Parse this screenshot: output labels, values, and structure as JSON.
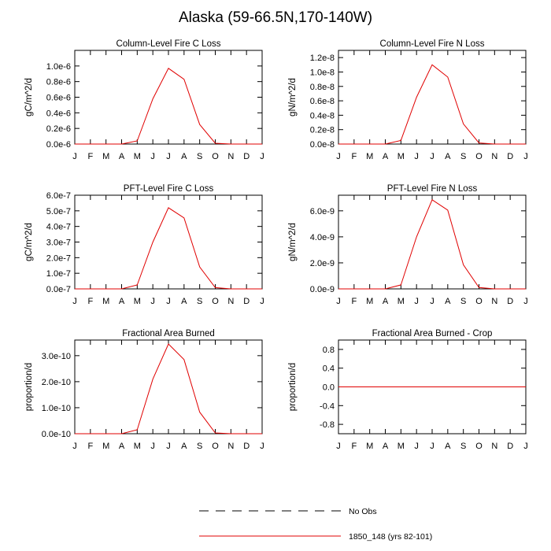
{
  "figure": {
    "title": "Alaska (59-66.5N,170-140W)"
  },
  "colors": {
    "model_line": "#e00000",
    "obs_line": "#000000",
    "axis": "#000000",
    "background": "#ffffff"
  },
  "legend": {
    "entries": [
      {
        "label": "No Obs",
        "style": "dashed",
        "color": "#000000"
      },
      {
        "label": "1850_148 (yrs 82-101)",
        "style": "solid",
        "color": "#e00000"
      }
    ]
  },
  "chart_data": [
    {
      "type": "line",
      "title": "Column-Level Fire C Loss",
      "ylabel": "gC/m^2/d",
      "xlabel": "",
      "categories": [
        "J",
        "F",
        "M",
        "A",
        "M",
        "J",
        "J",
        "A",
        "S",
        "O",
        "N",
        "D",
        "J"
      ],
      "ylim": [
        0,
        1.2e-06
      ],
      "yticks": [
        0,
        2e-07,
        4e-07,
        6e-07,
        8e-07,
        1e-06
      ],
      "ytick_labels": [
        "0.0e-6",
        "0.2e-6",
        "0.4e-6",
        "0.6e-6",
        "0.8e-6",
        "1.0e-6"
      ],
      "series": [
        {
          "name": "1850_148 (yrs 82-101)",
          "values": [
            0,
            0,
            0,
            0,
            4e-08,
            5.8e-07,
            9.7e-07,
            8.3e-07,
            2.5e-07,
            1e-08,
            0,
            0,
            0
          ]
        }
      ]
    },
    {
      "type": "line",
      "title": "Column-Level Fire N Loss",
      "ylabel": "gN/m^2/d",
      "xlabel": "",
      "categories": [
        "J",
        "F",
        "M",
        "A",
        "M",
        "J",
        "J",
        "A",
        "S",
        "O",
        "N",
        "D",
        "J"
      ],
      "ylim": [
        0,
        1.3e-08
      ],
      "yticks": [
        0,
        2e-09,
        4e-09,
        6e-09,
        8e-09,
        1e-08,
        1.2e-08
      ],
      "ytick_labels": [
        "0.0e-8",
        "0.2e-8",
        "0.4e-8",
        "0.6e-8",
        "0.8e-8",
        "1.0e-8",
        "1.2e-8"
      ],
      "series": [
        {
          "name": "1850_148 (yrs 82-101)",
          "values": [
            0,
            0,
            0,
            0,
            5e-10,
            6.5e-09,
            1.1e-08,
            9.3e-09,
            2.8e-09,
            1.5e-10,
            0,
            0,
            0
          ]
        }
      ]
    },
    {
      "type": "line",
      "title": "PFT-Level Fire C Loss",
      "ylabel": "gC/m^2/d",
      "xlabel": "",
      "categories": [
        "J",
        "F",
        "M",
        "A",
        "M",
        "J",
        "J",
        "A",
        "S",
        "O",
        "N",
        "D",
        "J"
      ],
      "ylim": [
        0,
        6e-07
      ],
      "yticks": [
        0,
        1e-07,
        2e-07,
        3e-07,
        4e-07,
        5e-07,
        6e-07
      ],
      "ytick_labels": [
        "0.0e-7",
        "1.0e-7",
        "2.0e-7",
        "3.0e-7",
        "4.0e-7",
        "5.0e-7",
        "6.0e-7"
      ],
      "series": [
        {
          "name": "1850_148 (yrs 82-101)",
          "values": [
            0,
            0,
            0,
            0,
            2.5e-08,
            3e-07,
            5.2e-07,
            4.55e-07,
            1.4e-07,
            8e-09,
            0,
            0,
            0
          ]
        }
      ]
    },
    {
      "type": "line",
      "title": "PFT-Level Fire N Loss",
      "ylabel": "gN/m^2/d",
      "xlabel": "",
      "categories": [
        "J",
        "F",
        "M",
        "A",
        "M",
        "J",
        "J",
        "A",
        "S",
        "O",
        "N",
        "D",
        "J"
      ],
      "ylim": [
        0,
        7.2e-09
      ],
      "yticks": [
        0,
        2e-09,
        4e-09,
        6e-09
      ],
      "ytick_labels": [
        "0.0e-9",
        "2.0e-9",
        "4.0e-9",
        "6.0e-9"
      ],
      "series": [
        {
          "name": "1850_148 (yrs 82-101)",
          "values": [
            0,
            0,
            0,
            0,
            3e-10,
            4e-09,
            6.85e-09,
            6.05e-09,
            1.85e-09,
            1e-10,
            0,
            0,
            0
          ]
        }
      ]
    },
    {
      "type": "line",
      "title": "Fractional Area Burned",
      "ylabel": "proportion/d",
      "xlabel": "",
      "categories": [
        "J",
        "F",
        "M",
        "A",
        "M",
        "J",
        "J",
        "A",
        "S",
        "O",
        "N",
        "D",
        "J"
      ],
      "ylim": [
        0,
        3.6e-10
      ],
      "yticks": [
        0,
        1e-10,
        2e-10,
        3e-10
      ],
      "ytick_labels": [
        "0.0e-10",
        "1.0e-10",
        "2.0e-10",
        "3.0e-10"
      ],
      "series": [
        {
          "name": "1850_148 (yrs 82-101)",
          "values": [
            0,
            0,
            0,
            0,
            1.5e-11,
            2.1e-10,
            3.45e-10,
            2.85e-10,
            8.3e-11,
            3e-12,
            0,
            0,
            0
          ]
        }
      ]
    },
    {
      "type": "line",
      "title": "Fractional Area Burned - Crop",
      "ylabel": "proportion/d",
      "xlabel": "",
      "categories": [
        "J",
        "F",
        "M",
        "A",
        "M",
        "J",
        "J",
        "A",
        "S",
        "O",
        "N",
        "D",
        "J"
      ],
      "ylim": [
        -1,
        1
      ],
      "yticks": [
        -0.8,
        -0.4,
        0,
        0.4,
        0.8
      ],
      "ytick_labels": [
        "-0.8",
        "-0.4",
        "0.0",
        "0.4",
        "0.8"
      ],
      "series": [
        {
          "name": "1850_148 (yrs 82-101)",
          "values": [
            0,
            0,
            0,
            0,
            0,
            0,
            0,
            0,
            0,
            0,
            0,
            0,
            0
          ]
        }
      ]
    }
  ]
}
